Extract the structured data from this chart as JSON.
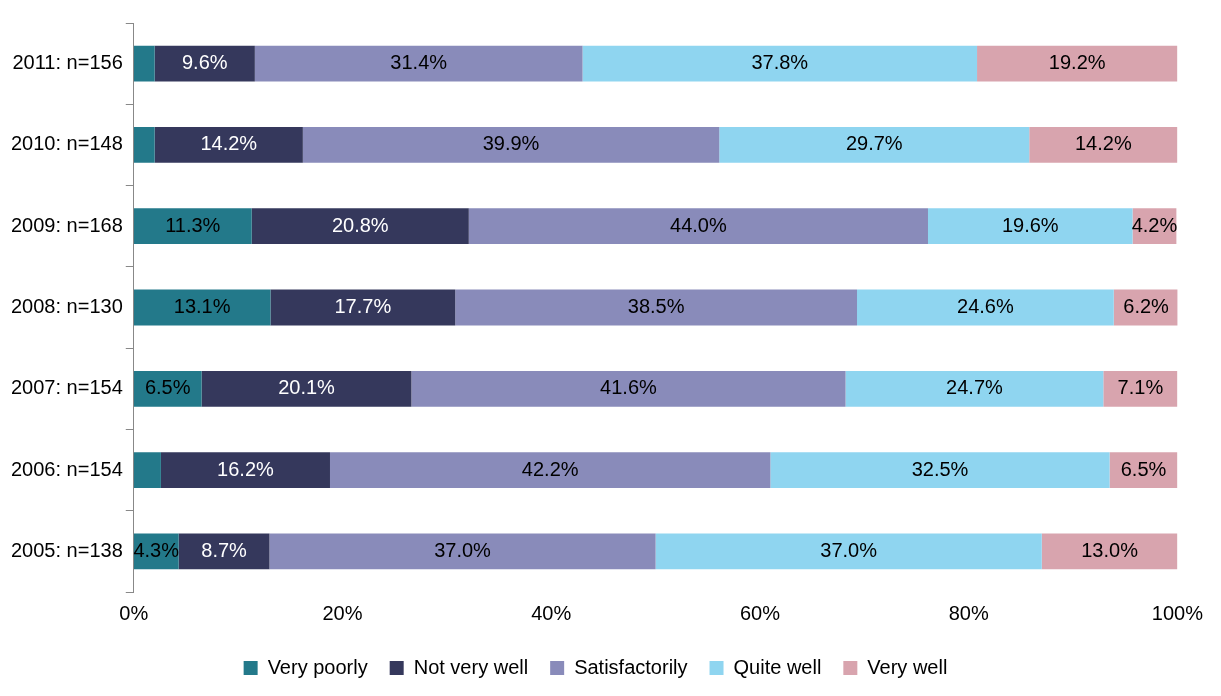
{
  "chart_data": {
    "type": "bar",
    "orientation": "horizontal",
    "stacked": true,
    "categories": [
      "2011: n=156",
      "2010: n=148",
      "2009: n=168",
      "2008: n=130",
      "2007: n=154",
      "2006: n=154",
      "2005: n=138"
    ],
    "series": [
      {
        "name": "Very poorly",
        "color": "#23798a",
        "values": [
          2.0,
          2.0,
          11.3,
          13.1,
          6.5,
          2.6,
          4.3
        ],
        "value_labels": [
          null,
          null,
          "11.3%",
          "13.1%",
          "6.5%",
          null,
          "4.3%"
        ]
      },
      {
        "name": "Not very well",
        "color": "#35385c",
        "values": [
          9.6,
          14.2,
          20.8,
          17.7,
          20.1,
          16.2,
          8.7
        ],
        "value_labels": [
          "9.6%",
          "14.2%",
          "20.8%",
          "17.7%",
          "20.1%",
          "16.2%",
          "8.7%"
        ]
      },
      {
        "name": "Satisfactorily",
        "color": "#898bba",
        "values": [
          31.4,
          39.9,
          44.0,
          38.5,
          41.6,
          42.2,
          37.0
        ],
        "value_labels": [
          "31.4%",
          "39.9%",
          "44.0%",
          "38.5%",
          "41.6%",
          "42.2%",
          "37.0%"
        ]
      },
      {
        "name": "Quite well",
        "color": "#8fd5f0",
        "values": [
          37.8,
          29.7,
          19.6,
          24.6,
          24.7,
          32.5,
          37.0
        ],
        "value_labels": [
          "37.8%",
          "29.7%",
          "19.6%",
          "24.6%",
          "24.7%",
          "32.5%",
          "37.0%"
        ]
      },
      {
        "name": "Very well",
        "color": "#d8a4ae",
        "values": [
          19.2,
          14.2,
          4.2,
          6.2,
          7.1,
          6.5,
          13.0
        ],
        "value_labels": [
          "19.2%",
          "14.2%",
          "4.2%",
          "6.2%",
          "7.1%",
          "6.5%",
          "13.0%"
        ]
      }
    ],
    "xlim": [
      0,
      100
    ],
    "xticks": [
      {
        "value": 0,
        "label": "0%"
      },
      {
        "value": 20,
        "label": "20%"
      },
      {
        "value": 40,
        "label": "40%"
      },
      {
        "value": 60,
        "label": "60%"
      },
      {
        "value": 80,
        "label": "80%"
      },
      {
        "value": 100,
        "label": "100%"
      }
    ],
    "grid": false,
    "legend": "bottom"
  }
}
